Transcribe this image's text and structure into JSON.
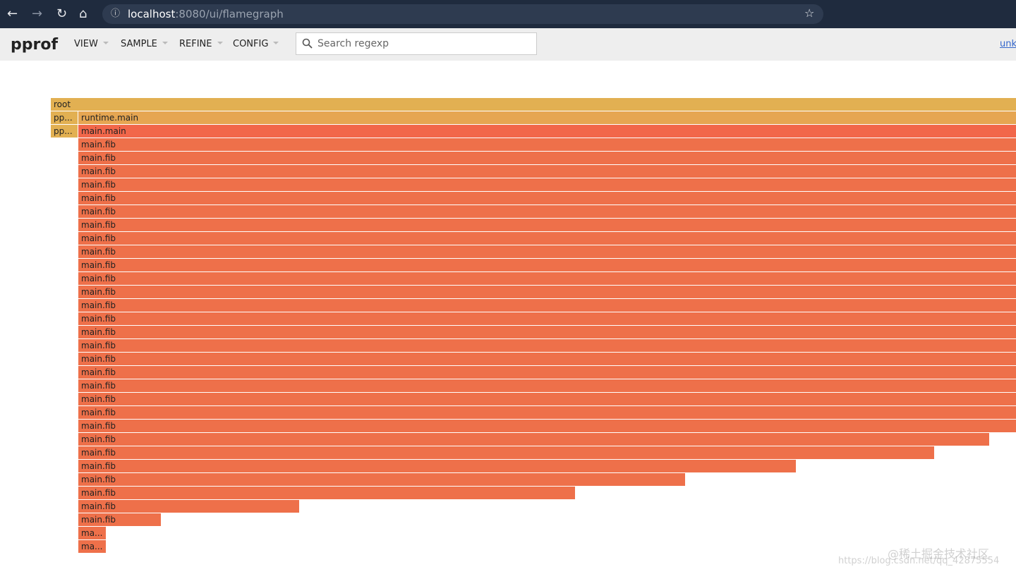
{
  "browser": {
    "url_host": "localhost",
    "url_path": ":8080/ui/flamegraph"
  },
  "toolbar": {
    "title": "pprof",
    "menus": [
      "VIEW",
      "SAMPLE",
      "REFINE",
      "CONFIG"
    ],
    "search_placeholder": "Search regexp",
    "link": "unk"
  },
  "flamegraph": {
    "rows": [
      [
        "root"
      ],
      [
        "pp...",
        "runtime.main"
      ],
      [
        "pp...",
        "main.main"
      ],
      [
        "main.fib"
      ],
      [
        "main.fib"
      ],
      [
        "main.fib"
      ],
      [
        "main.fib"
      ],
      [
        "main.fib"
      ],
      [
        "main.fib"
      ],
      [
        "main.fib"
      ],
      [
        "main.fib"
      ],
      [
        "main.fib"
      ],
      [
        "main.fib"
      ],
      [
        "main.fib"
      ],
      [
        "main.fib"
      ],
      [
        "main.fib"
      ],
      [
        "main.fib"
      ],
      [
        "main.fib"
      ],
      [
        "main.fib"
      ],
      [
        "main.fib"
      ],
      [
        "main.fib"
      ],
      [
        "main.fib"
      ],
      [
        "main.fib"
      ],
      [
        "main.fib"
      ],
      [
        "main.fib"
      ],
      [
        "main.fib"
      ],
      [
        "main.fib"
      ],
      [
        "main.fib"
      ],
      [
        "main.fib"
      ],
      [
        "main.fib"
      ],
      [
        "main.fib"
      ],
      [
        "main.fib"
      ],
      [
        "ma..."
      ],
      [
        "ma..."
      ]
    ]
  },
  "watermark": {
    "site": "@稀土掘金技术社区",
    "url": "https://blog.csdn.net/qq_42875554"
  }
}
